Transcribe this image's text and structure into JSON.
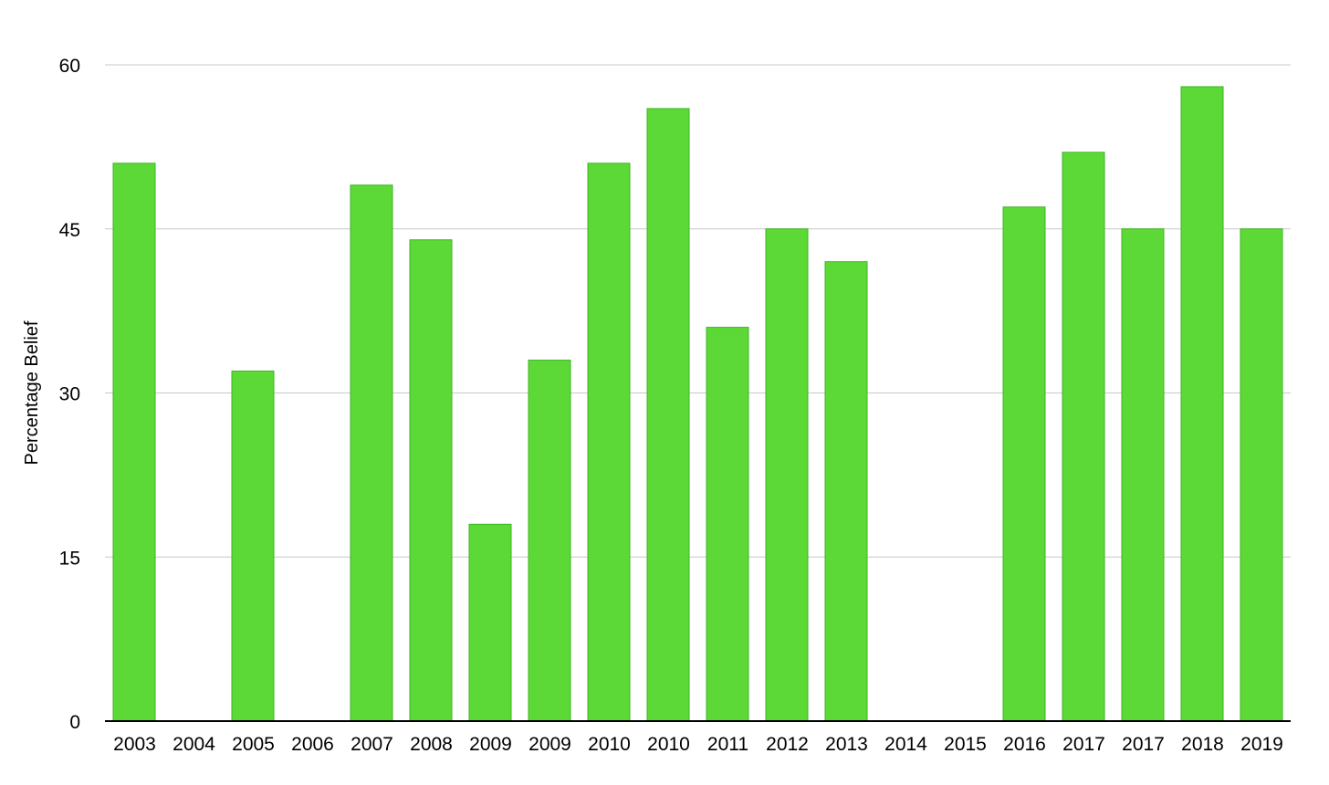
{
  "chart_data": {
    "type": "bar",
    "title": "",
    "xlabel": "",
    "ylabel": "Percentage Belief",
    "ylim": [
      0,
      60
    ],
    "yticks": [
      0,
      15,
      30,
      45,
      60
    ],
    "grid": true,
    "legend": "none",
    "bar_color": "#5dd937",
    "categories": [
      "2003",
      "2004",
      "2005",
      "2006",
      "2007",
      "2008",
      "2009",
      "2009",
      "2010",
      "2010",
      "2011",
      "2012",
      "2013",
      "2014",
      "2015",
      "2016",
      "2017",
      "2017",
      "2018",
      "2019"
    ],
    "values": [
      51,
      null,
      32,
      null,
      49,
      44,
      18,
      33,
      51,
      56,
      36,
      45,
      42,
      null,
      null,
      47,
      52,
      45,
      58,
      45
    ]
  }
}
